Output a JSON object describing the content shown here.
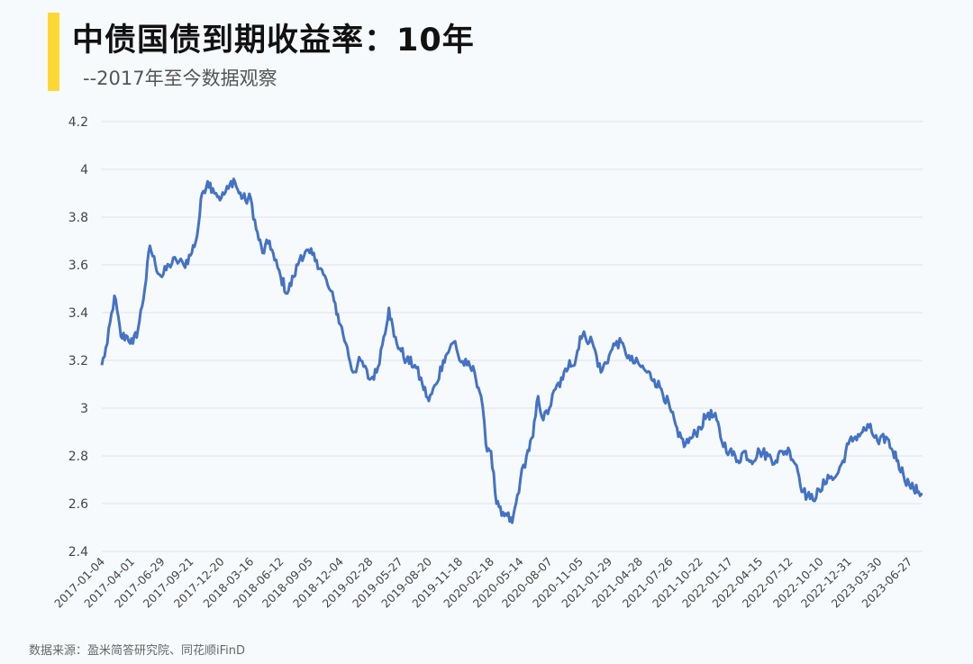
{
  "header": {
    "title": "中债国债到期收益率：10年",
    "subtitle": "--2017年至今数据观察"
  },
  "footer": {
    "source": "数据来源：盈米简答研究院、同花顺iFinD"
  },
  "colors": {
    "accent": "#fdd835",
    "line": "#4472c4",
    "grid": "#dde2e8",
    "background": "#f7fafd"
  },
  "chart_data": {
    "type": "line",
    "title": "中债国债到期收益率：10年",
    "xlabel": "",
    "ylabel": "",
    "ylim": [
      2.4,
      4.2
    ],
    "yticks": [
      "4.2",
      "4",
      "3.8",
      "3.6",
      "3.4",
      "3.2",
      "3",
      "2.8",
      "2.6",
      "2.4"
    ],
    "xtick_labels": [
      "2017-01-04",
      "2017-04-01",
      "2017-06-29",
      "2017-09-21",
      "2017-12-20",
      "2018-03-16",
      "2018-06-12",
      "2018-09-05",
      "2018-12-04",
      "2019-02-28",
      "2019-05-27",
      "2019-08-20",
      "2019-11-18",
      "2020-02-18",
      "2020-05-14",
      "2020-08-07",
      "2020-11-05",
      "2021-01-29",
      "2021-04-28",
      "2021-07-26",
      "2021-10-22",
      "2022-01-17",
      "2022-04-15",
      "2022-07-12",
      "2022-10-10",
      "2022-12-31",
      "2023-03-30",
      "2023-06-27"
    ],
    "grid": true,
    "legend": "none",
    "series": [
      {
        "x": [
          "2017-01-04",
          "2017-01-20",
          "2017-02-10",
          "2017-03-01",
          "2017-03-20",
          "2017-04-05",
          "2017-04-20",
          "2017-05-10",
          "2017-05-25",
          "2017-06-10",
          "2017-06-29",
          "2017-07-20",
          "2017-08-10",
          "2017-09-01",
          "2017-09-21",
          "2017-10-10",
          "2017-10-25",
          "2017-11-10",
          "2017-11-25",
          "2017-12-05",
          "2017-12-20",
          "2018-01-10",
          "2018-01-25",
          "2018-02-10",
          "2018-03-01",
          "2018-03-16",
          "2018-04-01",
          "2018-04-20",
          "2018-05-10",
          "2018-05-25",
          "2018-06-12",
          "2018-07-01",
          "2018-07-20",
          "2018-08-10",
          "2018-09-05",
          "2018-09-25",
          "2018-10-15",
          "2018-11-01",
          "2018-11-15",
          "2018-12-04",
          "2018-12-20",
          "2019-01-10",
          "2019-02-01",
          "2019-02-28",
          "2019-03-20",
          "2019-04-10",
          "2019-04-25",
          "2019-05-10",
          "2019-05-27",
          "2019-06-15",
          "2019-07-10",
          "2019-08-01",
          "2019-08-20",
          "2019-09-10",
          "2019-10-01",
          "2019-10-20",
          "2019-11-05",
          "2019-11-18",
          "2019-12-10",
          "2020-01-01",
          "2020-01-20",
          "2020-02-03",
          "2020-02-18",
          "2020-03-05",
          "2020-03-20",
          "2020-04-05",
          "2020-04-20",
          "2020-05-01",
          "2020-05-14",
          "2020-06-01",
          "2020-06-20",
          "2020-07-05",
          "2020-07-20",
          "2020-08-07",
          "2020-08-25",
          "2020-09-15",
          "2020-10-05",
          "2020-10-20",
          "2020-11-05",
          "2020-11-20",
          "2020-12-10",
          "2021-01-05",
          "2021-01-29",
          "2021-02-20",
          "2021-03-15",
          "2021-04-01",
          "2021-04-28",
          "2021-05-20",
          "2021-06-10",
          "2021-07-01",
          "2021-07-26",
          "2021-08-20",
          "2021-09-10",
          "2021-10-01",
          "2021-10-22",
          "2021-11-15",
          "2021-12-10",
          "2021-12-25",
          "2022-01-17",
          "2022-02-10",
          "2022-03-01",
          "2022-03-20",
          "2022-04-15",
          "2022-05-10",
          "2022-06-01",
          "2022-06-20",
          "2022-07-12",
          "2022-08-01",
          "2022-08-20",
          "2022-09-10",
          "2022-10-10",
          "2022-11-01",
          "2022-11-15",
          "2022-12-01",
          "2022-12-15",
          "2022-12-31",
          "2023-01-20",
          "2023-02-10",
          "2023-03-01",
          "2023-03-30",
          "2023-04-20",
          "2023-05-10",
          "2023-05-25",
          "2023-06-10",
          "2023-06-27",
          "2023-07-10",
          "2023-07-25",
          "2023-08-05"
        ],
        "y": [
          3.18,
          3.27,
          3.47,
          3.3,
          3.3,
          3.27,
          3.33,
          3.5,
          3.68,
          3.6,
          3.55,
          3.6,
          3.62,
          3.6,
          3.64,
          3.72,
          3.9,
          3.95,
          3.92,
          3.9,
          3.88,
          3.92,
          3.96,
          3.9,
          3.87,
          3.88,
          3.75,
          3.65,
          3.7,
          3.62,
          3.55,
          3.48,
          3.55,
          3.64,
          3.65,
          3.62,
          3.56,
          3.5,
          3.45,
          3.35,
          3.27,
          3.15,
          3.2,
          3.12,
          3.15,
          3.3,
          3.42,
          3.3,
          3.25,
          3.2,
          3.18,
          3.1,
          3.03,
          3.1,
          3.2,
          3.25,
          3.28,
          3.2,
          3.18,
          3.15,
          3.05,
          2.85,
          2.82,
          2.6,
          2.55,
          2.55,
          2.52,
          2.6,
          2.7,
          2.8,
          2.88,
          3.05,
          2.95,
          3.0,
          3.08,
          3.12,
          3.2,
          3.18,
          3.3,
          3.3,
          3.28,
          3.15,
          3.22,
          3.28,
          3.25,
          3.2,
          3.18,
          3.15,
          3.12,
          3.08,
          3.0,
          2.88,
          2.85,
          2.88,
          2.92,
          2.98,
          2.95,
          2.86,
          2.82,
          2.78,
          2.82,
          2.78,
          2.82,
          2.8,
          2.78,
          2.82,
          2.82,
          2.76,
          2.65,
          2.62,
          2.65,
          2.72,
          2.7,
          2.73,
          2.78,
          2.85,
          2.88,
          2.9,
          2.92,
          2.85,
          2.88,
          2.82,
          2.78,
          2.72,
          2.68,
          2.66,
          2.65,
          2.64
        ]
      }
    ]
  }
}
